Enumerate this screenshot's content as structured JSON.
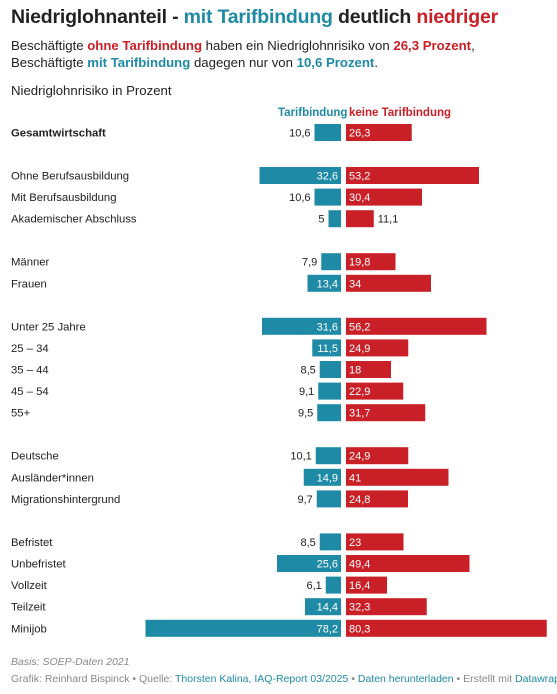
{
  "headline": {
    "part1": "Niedriglohnanteil - ",
    "part2": "mit Tarifbindung",
    "part3": " deutlich ",
    "part4": "niedriger"
  },
  "subtitle": {
    "t1": "Beschäftigte ",
    "t2": "ohne Tarifbindung",
    "t3": " haben ein Niedriglohnrisiko von ",
    "t4": "26,3 Prozent",
    "t5": ", Beschäftigte ",
    "t6": "mit Tarifbindung",
    "t7": " dagegen nur von ",
    "t8": "10,6 Prozent",
    "t9": "."
  },
  "note": "Niedriglohnrisiko in Prozent",
  "colors": {
    "mit": "#1f8aa5",
    "ohne": "#c91f26"
  },
  "chart_data": {
    "type": "bar",
    "series": [
      {
        "name": "Tarifbindung",
        "color": "#1f8aa5"
      },
      {
        "name": "keine Tarifbindung",
        "color": "#c91f26"
      }
    ],
    "rows": [
      {
        "label": "Gesamtwirtschaft",
        "mit": 10.6,
        "mit_label": "10,6",
        "ohne": 26.3,
        "ohne_label": "26,3",
        "bold": true,
        "group": 0
      },
      {
        "label": "Ohne Berufsausbildung",
        "mit": 32.6,
        "mit_label": "32,6",
        "ohne": 53.2,
        "ohne_label": "53,2",
        "group": 1
      },
      {
        "label": "Mit Berufsausbildung",
        "mit": 10.6,
        "mit_label": "10,6",
        "ohne": 30.4,
        "ohne_label": "30,4",
        "group": 1
      },
      {
        "label": "Akademischer Abschluss",
        "mit": 5,
        "mit_label": "5",
        "ohne": 11.1,
        "ohne_label": "11,1",
        "group": 1
      },
      {
        "label": "Männer",
        "mit": 7.9,
        "mit_label": "7,9",
        "ohne": 19.8,
        "ohne_label": "19,8",
        "group": 2
      },
      {
        "label": "Frauen",
        "mit": 13.4,
        "mit_label": "13,4",
        "ohne": 34,
        "ohne_label": "34",
        "group": 2
      },
      {
        "label": "Unter 25 Jahre",
        "mit": 31.6,
        "mit_label": "31,6",
        "ohne": 56.2,
        "ohne_label": "56,2",
        "group": 3
      },
      {
        "label": "25 – 34",
        "mit": 11.5,
        "mit_label": "11,5",
        "ohne": 24.9,
        "ohne_label": "24,9",
        "group": 3
      },
      {
        "label": "35 – 44",
        "mit": 8.5,
        "mit_label": "8,5",
        "ohne": 18,
        "ohne_label": "18",
        "group": 3
      },
      {
        "label": "45 – 54",
        "mit": 9.1,
        "mit_label": "9,1",
        "ohne": 22.9,
        "ohne_label": "22,9",
        "group": 3
      },
      {
        "label": "55+",
        "mit": 9.5,
        "mit_label": "9,5",
        "ohne": 31.7,
        "ohne_label": "31,7",
        "group": 3
      },
      {
        "label": "Deutsche",
        "mit": 10.1,
        "mit_label": "10,1",
        "ohne": 24.9,
        "ohne_label": "24,9",
        "group": 4
      },
      {
        "label": "Ausländer*innen",
        "mit": 14.9,
        "mit_label": "14,9",
        "ohne": 41,
        "ohne_label": "41",
        "group": 4
      },
      {
        "label": "Migrationshintergrund",
        "mit": 9.7,
        "mit_label": "9,7",
        "ohne": 24.8,
        "ohne_label": "24,8",
        "group": 4
      },
      {
        "label": "Befristet",
        "mit": 8.5,
        "mit_label": "8,5",
        "ohne": 23,
        "ohne_label": "23",
        "group": 5
      },
      {
        "label": "Unbefristet",
        "mit": 25.6,
        "mit_label": "25,6",
        "ohne": 49.4,
        "ohne_label": "49,4",
        "group": 5
      },
      {
        "label": "Vollzeit",
        "mit": 6.1,
        "mit_label": "6,1",
        "ohne": 16.4,
        "ohne_label": "16,4",
        "group": 5
      },
      {
        "label": "Teilzeit",
        "mit": 14.4,
        "mit_label": "14,4",
        "ohne": 32.3,
        "ohne_label": "32,3",
        "group": 5
      },
      {
        "label": "Minijob",
        "mit": 78.2,
        "mit_label": "78,2",
        "ohne": 80.3,
        "ohne_label": "80,3",
        "group": 5
      }
    ]
  },
  "footer": {
    "basis": "Basis: SOEP-Daten 2021",
    "c1": "Grafik: Reinhard Bispinck • Quelle: ",
    "c2": "Thorsten Kalina, IAQ-Report 03/2025",
    "c3": " • ",
    "c4": "Daten herunterladen",
    "c5": " • Erstellt mit ",
    "c6": "Datawrapper"
  }
}
